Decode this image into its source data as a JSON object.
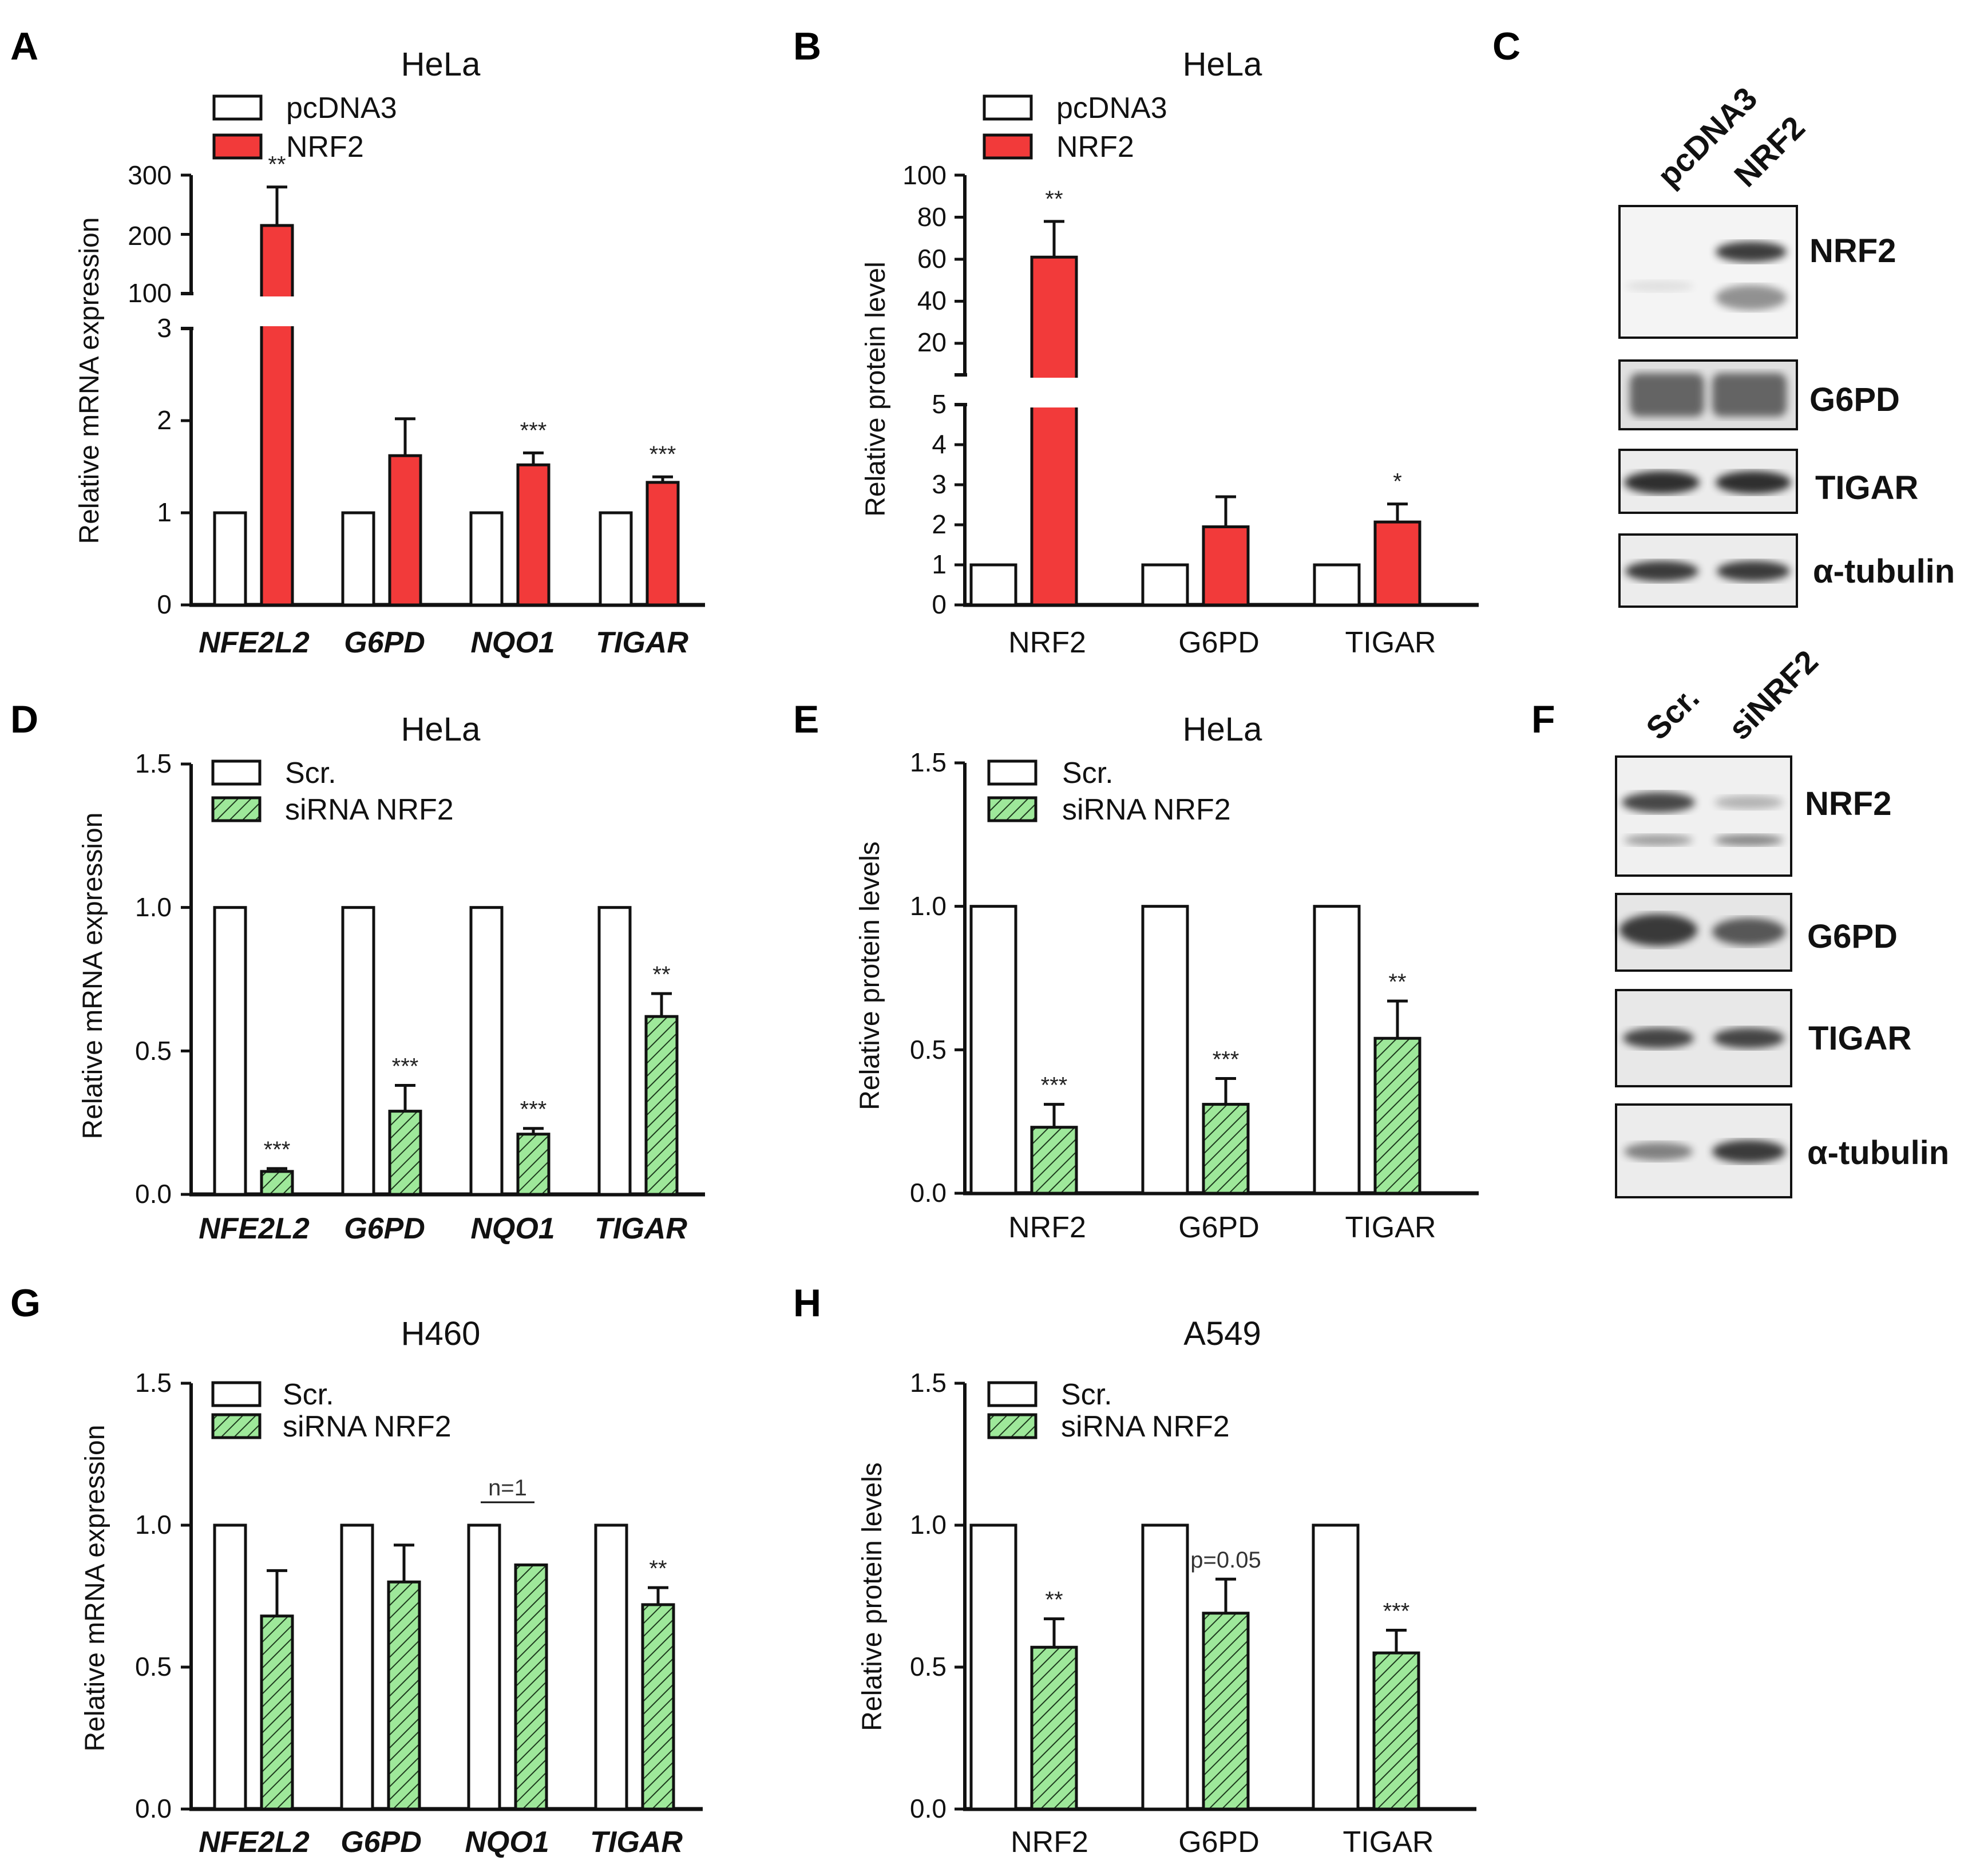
{
  "colors": {
    "nrf2_fill": "#f23a3a",
    "sirna_fill": "#9ee89a",
    "control_fill": "#ffffff",
    "stroke": "#111111"
  },
  "chart_data": [
    {
      "id": "A",
      "letter": "A",
      "type": "bar",
      "title": "HeLa",
      "ylabel": "Relative mRNA expression",
      "categories_italic": true,
      "categories": [
        "NFE2L2",
        "G6PD",
        "NQO1",
        "TIGAR"
      ],
      "legend": [
        "pcDNA3",
        "NRF2"
      ],
      "series": [
        {
          "name": "pcDNA3",
          "values": [
            1,
            1,
            1,
            1
          ],
          "errors": [
            0,
            0,
            0,
            0
          ]
        },
        {
          "name": "NRF2",
          "values": [
            215,
            1.62,
            1.52,
            1.33
          ],
          "errors": [
            65,
            0.4,
            0.13,
            0.06
          ]
        }
      ],
      "significance": [
        "**",
        "",
        "***",
        "***"
      ],
      "y_lower_ticks": [
        "0",
        "1",
        "2",
        "3"
      ],
      "y_upper_ticks": [
        "100",
        "200",
        "300"
      ],
      "ylim_lower": [
        0,
        3
      ],
      "ylim_upper": [
        100,
        300
      ]
    },
    {
      "id": "B",
      "letter": "B",
      "type": "bar",
      "title": "HeLa",
      "ylabel": "Relative protein level",
      "categories_italic": false,
      "categories": [
        "NRF2",
        "G6PD",
        "TIGAR"
      ],
      "legend": [
        "pcDNA3",
        "NRF2"
      ],
      "series": [
        {
          "name": "pcDNA3",
          "values": [
            1,
            1,
            1
          ],
          "errors": [
            0,
            0,
            0
          ]
        },
        {
          "name": "NRF2",
          "values": [
            61,
            1.95,
            2.07
          ],
          "errors": [
            17,
            0.75,
            0.45
          ]
        }
      ],
      "significance": [
        "**",
        "",
        "*"
      ],
      "y_lower_ticks": [
        "0",
        "1",
        "2",
        "3",
        "4",
        "5"
      ],
      "y_upper_ticks": [
        "20",
        "40",
        "60",
        "80",
        "100"
      ],
      "ylim_lower": [
        0,
        5
      ],
      "ylim_upper": [
        5,
        100
      ]
    },
    {
      "id": "D",
      "letter": "D",
      "type": "bar",
      "title": "HeLa",
      "ylabel": "Relative mRNA expression",
      "categories_italic": true,
      "categories": [
        "NFE2L2",
        "G6PD",
        "NQO1",
        "TIGAR"
      ],
      "legend": [
        "Scr.",
        "siRNA NRF2"
      ],
      "series": [
        {
          "name": "Scr.",
          "values": [
            1,
            1,
            1,
            1
          ],
          "errors": [
            0,
            0,
            0,
            0
          ]
        },
        {
          "name": "siRNA NRF2",
          "values": [
            0.08,
            0.29,
            0.21,
            0.62
          ],
          "errors": [
            0.01,
            0.09,
            0.02,
            0.08
          ]
        }
      ],
      "significance": [
        "***",
        "***",
        "***",
        "**"
      ],
      "yticks": [
        "0.0",
        "0.5",
        "1.0",
        "1.5"
      ],
      "ylim": [
        0,
        1.5
      ]
    },
    {
      "id": "E",
      "letter": "E",
      "type": "bar",
      "title": "HeLa",
      "ylabel": "Relative protein levels",
      "categories_italic": false,
      "categories": [
        "NRF2",
        "G6PD",
        "TIGAR"
      ],
      "legend": [
        "Scr.",
        "siRNA NRF2"
      ],
      "series": [
        {
          "name": "Scr.",
          "values": [
            1,
            1,
            1
          ],
          "errors": [
            0,
            0,
            0
          ]
        },
        {
          "name": "siRNA NRF2",
          "values": [
            0.23,
            0.31,
            0.54
          ],
          "errors": [
            0.08,
            0.09,
            0.13
          ]
        }
      ],
      "significance": [
        "***",
        "***",
        "**"
      ],
      "yticks": [
        "0.0",
        "0.5",
        "1.0",
        "1.5"
      ],
      "ylim": [
        0,
        1.5
      ]
    },
    {
      "id": "G",
      "letter": "G",
      "type": "bar",
      "title": "H460",
      "ylabel": "Relative mRNA expression",
      "categories_italic": true,
      "categories": [
        "NFE2L2",
        "G6PD",
        "NQO1",
        "TIGAR"
      ],
      "legend": [
        "Scr.",
        "siRNA NRF2"
      ],
      "series": [
        {
          "name": "Scr.",
          "values": [
            1,
            1,
            1,
            1
          ],
          "errors": [
            0,
            0,
            0,
            0
          ]
        },
        {
          "name": "siRNA NRF2",
          "values": [
            0.68,
            0.8,
            0.86,
            0.72
          ],
          "errors": [
            0.16,
            0.13,
            0,
            0.06
          ]
        }
      ],
      "significance": [
        "",
        "",
        "",
        "**"
      ],
      "note": {
        "index": 2,
        "text": "n=1"
      },
      "yticks": [
        "0.0",
        "0.5",
        "1.0",
        "1.5"
      ],
      "ylim": [
        0,
        1.5
      ]
    },
    {
      "id": "H",
      "letter": "H",
      "type": "bar",
      "title": "A549",
      "ylabel": "Relative protein levels",
      "categories_italic": false,
      "categories": [
        "NRF2",
        "G6PD",
        "TIGAR"
      ],
      "legend": [
        "Scr.",
        "siRNA NRF2"
      ],
      "series": [
        {
          "name": "Scr.",
          "values": [
            1,
            1,
            1
          ],
          "errors": [
            0,
            0,
            0
          ]
        },
        {
          "name": "siRNA NRF2",
          "values": [
            0.57,
            0.69,
            0.55
          ],
          "errors": [
            0.1,
            0.12,
            0.08
          ]
        }
      ],
      "significance": [
        "**",
        "p=0.05",
        "***"
      ],
      "yticks": [
        "0.0",
        "0.5",
        "1.0",
        "1.5"
      ],
      "ylim": [
        0,
        1.5
      ]
    }
  ],
  "blots": {
    "C": {
      "letter": "C",
      "lanes": [
        "pcDNA3",
        "NRF2"
      ],
      "bands": [
        "NRF2",
        "G6PD",
        "TIGAR",
        "α-tubulin"
      ]
    },
    "F": {
      "letter": "F",
      "lanes": [
        "Scr.",
        "siNRF2"
      ],
      "bands": [
        "NRF2",
        "G6PD",
        "TIGAR",
        "α-tubulin"
      ]
    }
  }
}
